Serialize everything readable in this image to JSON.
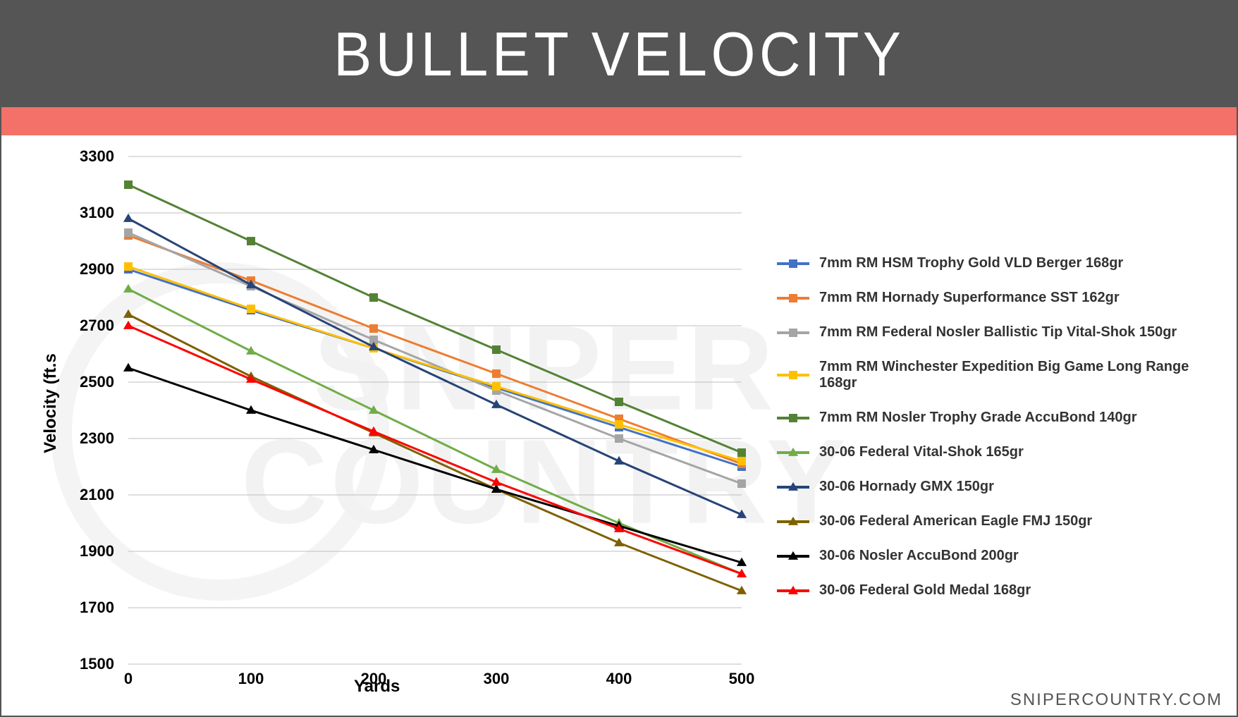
{
  "title": "BULLET VELOCITY",
  "title_bar_color": "#555555",
  "accent_bar_color": "#f37168",
  "background_color": "#ffffff",
  "watermark_text": "SNIPER\nCOUNTRY",
  "watermark_color": "#f2f2f2",
  "footer_text": "SNIPERCOUNTRY.COM",
  "chart": {
    "type": "line",
    "x_label": "Yards",
    "y_label": "Velocity (ft.s",
    "x_values": [
      0,
      100,
      200,
      300,
      400,
      500
    ],
    "y_min": 1500,
    "y_max": 3300,
    "y_tick_step": 200,
    "y_ticks": [
      1500,
      1700,
      1900,
      2100,
      2300,
      2500,
      2700,
      2900,
      3100,
      3300
    ],
    "grid_color": "#bfbfbf",
    "axis_label_fontsize": 24,
    "tick_label_fontsize": 22,
    "tick_label_fontweight": 700,
    "line_width": 3,
    "marker_size": 12,
    "series": [
      {
        "name": "7mm RM HSM Trophy Gold VLD Berger 168gr",
        "color": "#4472c4",
        "marker": "square",
        "values": [
          2900,
          2755,
          2620,
          2480,
          2340,
          2200
        ]
      },
      {
        "name": "7mm RM Hornady Superformance SST 162gr",
        "color": "#ed7d31",
        "marker": "square",
        "values": [
          3020,
          2860,
          2690,
          2530,
          2370,
          2210
        ]
      },
      {
        "name": "7mm RM Federal Nosler Ballistic Tip Vital-Shok 150gr",
        "color": "#a5a5a5",
        "marker": "square",
        "values": [
          3030,
          2840,
          2650,
          2470,
          2300,
          2140
        ]
      },
      {
        "name": "7mm RM Winchester Expedition Big Game Long Range 168gr",
        "color": "#ffc000",
        "marker": "square",
        "values": [
          2910,
          2760,
          2620,
          2485,
          2350,
          2220
        ]
      },
      {
        "name": "7mm RM Nosler Trophy Grade AccuBond 140gr",
        "color": "#548235",
        "marker": "square",
        "values": [
          3200,
          3000,
          2800,
          2615,
          2430,
          2250
        ]
      },
      {
        "name": "30-06 Federal Vital-Shok 165gr",
        "color": "#70ad47",
        "marker": "triangle",
        "values": [
          2830,
          2610,
          2400,
          2190,
          2000,
          1820
        ]
      },
      {
        "name": "30-06 Hornady GMX 150gr",
        "color": "#264478",
        "marker": "triangle",
        "values": [
          3080,
          2845,
          2625,
          2420,
          2220,
          2030
        ]
      },
      {
        "name": "30-06 Federal American Eagle FMJ 150gr",
        "color": "#7f6000",
        "marker": "triangle",
        "values": [
          2740,
          2520,
          2320,
          2120,
          1930,
          1760
        ]
      },
      {
        "name": "30-06 Nosler AccuBond 200gr",
        "color": "#000000",
        "marker": "triangle",
        "values": [
          2550,
          2400,
          2260,
          2120,
          1990,
          1860
        ]
      },
      {
        "name": "30-06 Federal Gold Medal 168gr",
        "color": "#ff0000",
        "marker": "triangle",
        "values": [
          2700,
          2510,
          2325,
          2145,
          1980,
          1820
        ]
      }
    ]
  }
}
